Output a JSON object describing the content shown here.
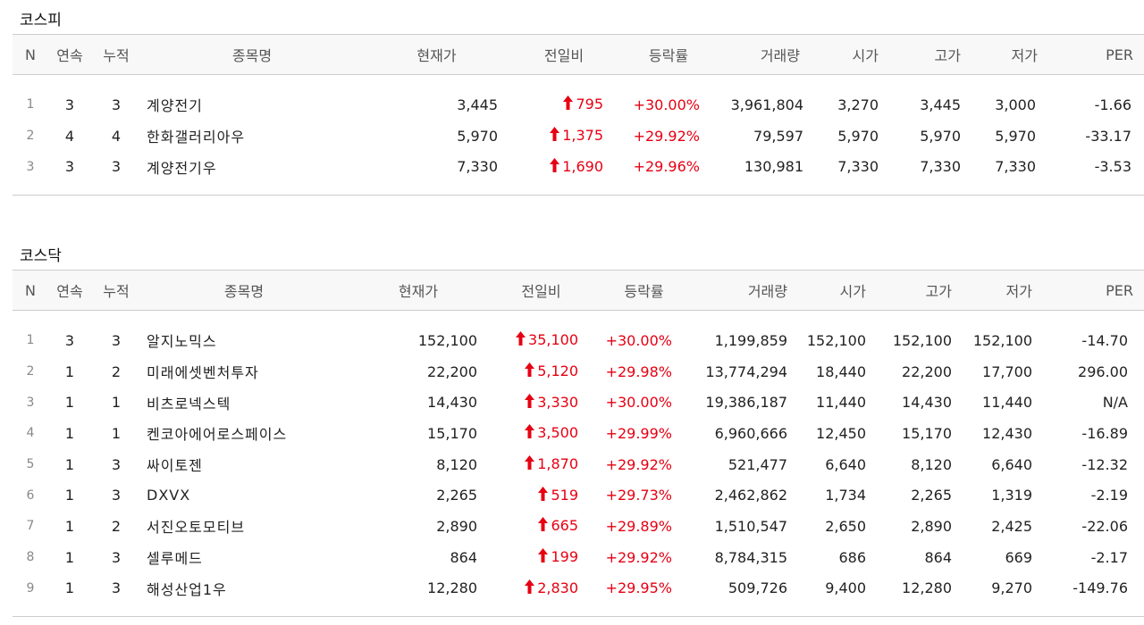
{
  "colors": {
    "up": "#e60012",
    "border": "#cccccc",
    "header_bg": "#f8f8f8"
  },
  "up_icon": "arrow-up-icon",
  "kospi": {
    "title": "코스피",
    "headers": [
      "N",
      "연속",
      "누적",
      "종목명",
      "현재가",
      "전일비",
      "등락률",
      "거래량",
      "시가",
      "고가",
      "저가",
      "PER"
    ],
    "rows": [
      {
        "n": "1",
        "cont": "3",
        "cum": "3",
        "name": "계양전기",
        "price": "3,445",
        "change": "795",
        "rate": "+30.00%",
        "volume": "3,961,804",
        "open": "3,270",
        "high": "3,445",
        "low": "3,000",
        "per": "-1.66"
      },
      {
        "n": "2",
        "cont": "4",
        "cum": "4",
        "name": "한화갤러리아우",
        "price": "5,970",
        "change": "1,375",
        "rate": "+29.92%",
        "volume": "79,597",
        "open": "5,970",
        "high": "5,970",
        "low": "5,970",
        "per": "-33.17"
      },
      {
        "n": "3",
        "cont": "3",
        "cum": "3",
        "name": "계양전기우",
        "price": "7,330",
        "change": "1,690",
        "rate": "+29.96%",
        "volume": "130,981",
        "open": "7,330",
        "high": "7,330",
        "low": "7,330",
        "per": "-3.53"
      }
    ]
  },
  "kosdaq": {
    "title": "코스닥",
    "headers": [
      "N",
      "연속",
      "누적",
      "종목명",
      "현재가",
      "전일비",
      "등락률",
      "거래량",
      "시가",
      "고가",
      "저가",
      "PER"
    ],
    "rows": [
      {
        "n": "1",
        "cont": "3",
        "cum": "3",
        "name": "알지노믹스",
        "price": "152,100",
        "change": "35,100",
        "rate": "+30.00%",
        "volume": "1,199,859",
        "open": "152,100",
        "high": "152,100",
        "low": "152,100",
        "per": "-14.70"
      },
      {
        "n": "2",
        "cont": "1",
        "cum": "2",
        "name": "미래에셋벤처투자",
        "price": "22,200",
        "change": "5,120",
        "rate": "+29.98%",
        "volume": "13,774,294",
        "open": "18,440",
        "high": "22,200",
        "low": "17,700",
        "per": "296.00"
      },
      {
        "n": "3",
        "cont": "1",
        "cum": "1",
        "name": "비츠로넥스텍",
        "price": "14,430",
        "change": "3,330",
        "rate": "+30.00%",
        "volume": "19,386,187",
        "open": "11,440",
        "high": "14,430",
        "low": "11,440",
        "per": "N/A"
      },
      {
        "n": "4",
        "cont": "1",
        "cum": "1",
        "name": "켄코아에어로스페이스",
        "price": "15,170",
        "change": "3,500",
        "rate": "+29.99%",
        "volume": "6,960,666",
        "open": "12,450",
        "high": "15,170",
        "low": "12,430",
        "per": "-16.89"
      },
      {
        "n": "5",
        "cont": "1",
        "cum": "3",
        "name": "싸이토젠",
        "price": "8,120",
        "change": "1,870",
        "rate": "+29.92%",
        "volume": "521,477",
        "open": "6,640",
        "high": "8,120",
        "low": "6,640",
        "per": "-12.32"
      },
      {
        "n": "6",
        "cont": "1",
        "cum": "3",
        "name": "DXVX",
        "price": "2,265",
        "change": "519",
        "rate": "+29.73%",
        "volume": "2,462,862",
        "open": "1,734",
        "high": "2,265",
        "low": "1,319",
        "per": "-2.19"
      },
      {
        "n": "7",
        "cont": "1",
        "cum": "2",
        "name": "서진오토모티브",
        "price": "2,890",
        "change": "665",
        "rate": "+29.89%",
        "volume": "1,510,547",
        "open": "2,650",
        "high": "2,890",
        "low": "2,425",
        "per": "-22.06"
      },
      {
        "n": "8",
        "cont": "1",
        "cum": "3",
        "name": "셀루메드",
        "price": "864",
        "change": "199",
        "rate": "+29.92%",
        "volume": "8,784,315",
        "open": "686",
        "high": "864",
        "low": "669",
        "per": "-2.17"
      },
      {
        "n": "9",
        "cont": "1",
        "cum": "3",
        "name": "해성산업1우",
        "price": "12,280",
        "change": "2,830",
        "rate": "+29.95%",
        "volume": "509,726",
        "open": "9,400",
        "high": "12,280",
        "low": "9,270",
        "per": "-149.76"
      }
    ]
  }
}
